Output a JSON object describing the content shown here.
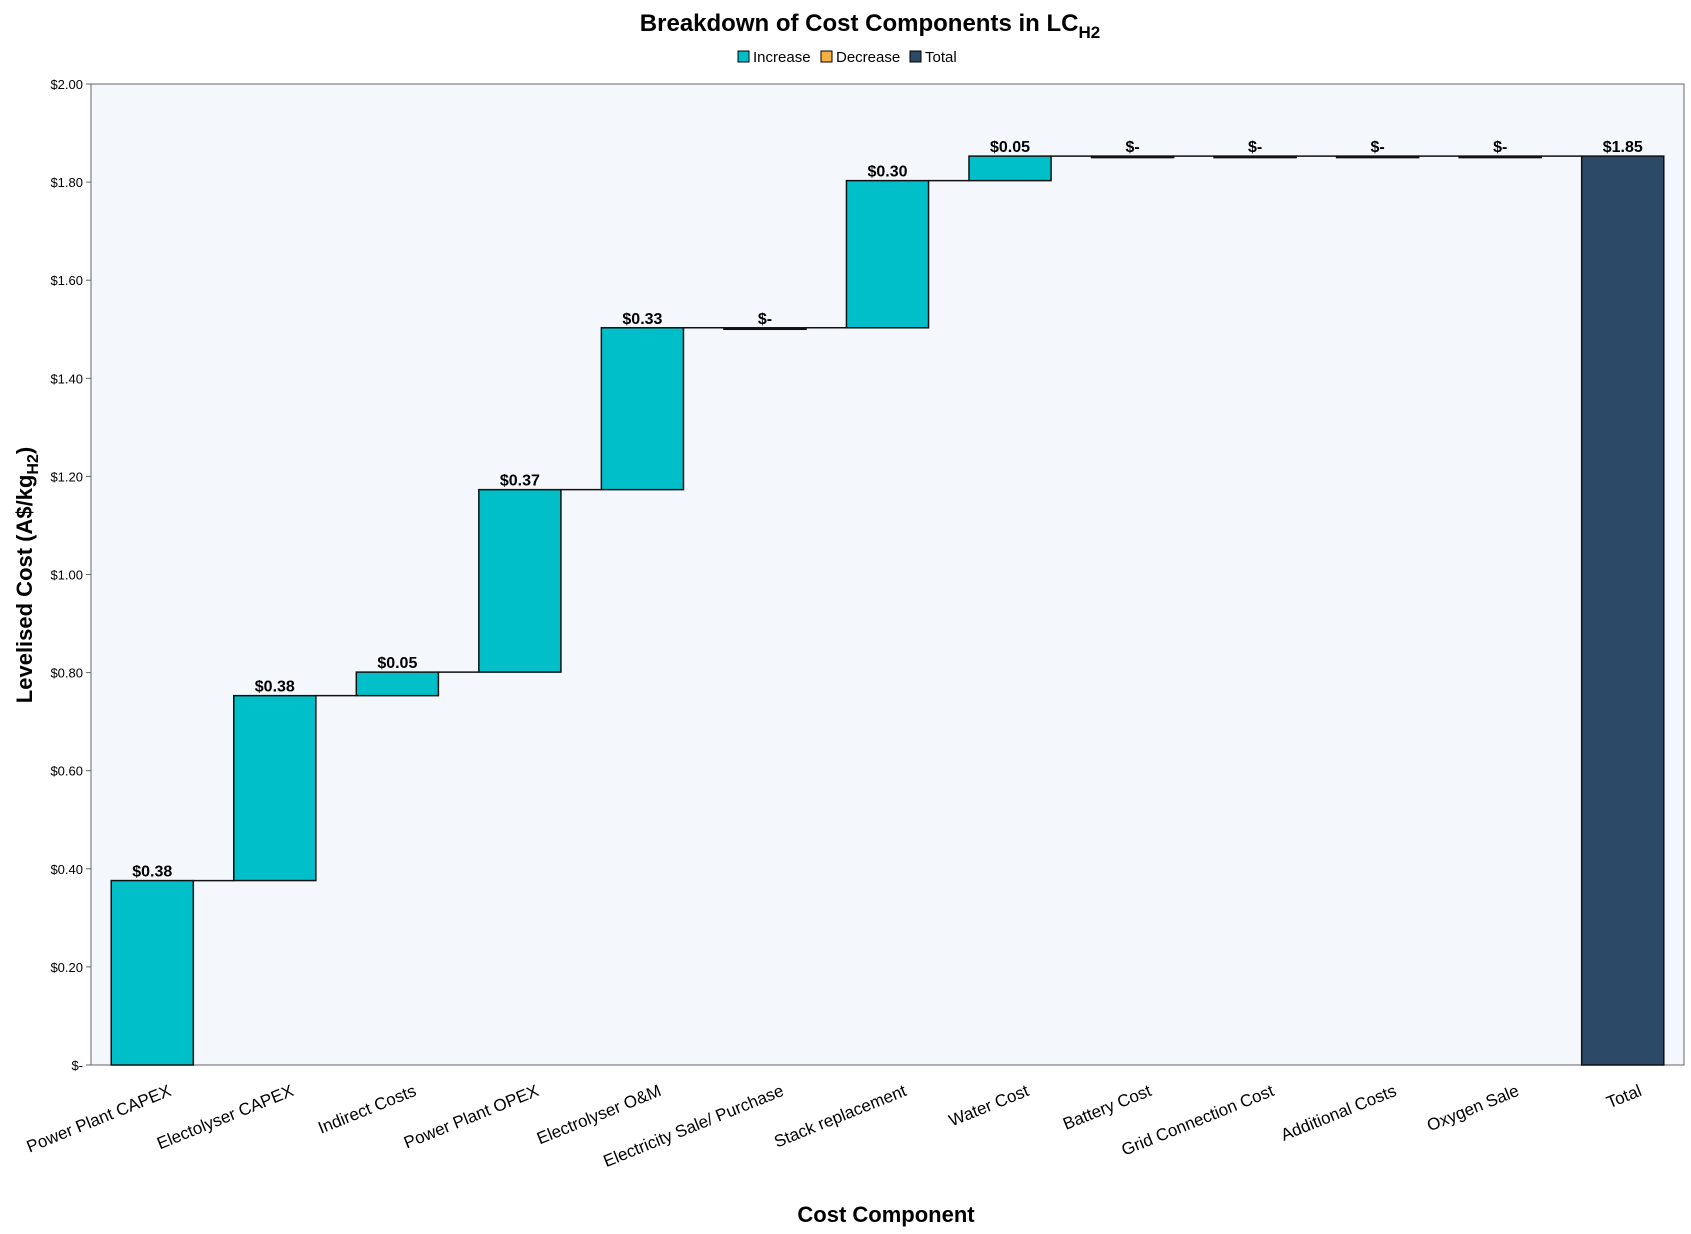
{
  "chart_data": {
    "type": "bar",
    "subtype": "waterfall",
    "title": "Breakdown of Cost Components in LC",
    "title_subscript": "H2",
    "xlabel": "Cost Component",
    "ylabel": "Levelised Cost (A$/kg",
    "ylabel_subscript": "H2",
    "ylabel_suffix": ")",
    "ylim": [
      0,
      2.0
    ],
    "yticks": [
      0,
      0.2,
      0.4,
      0.6,
      0.8,
      1.0,
      1.2,
      1.4,
      1.6,
      1.8,
      2.0
    ],
    "ytick_labels": [
      "$-",
      "$0.20",
      "$0.40",
      "$0.60",
      "$0.80",
      "$1.00",
      "$1.20",
      "$1.40",
      "$1.60",
      "$1.80",
      "$2.00"
    ],
    "legend": {
      "placement": "top-center",
      "entries": [
        {
          "name": "Increase",
          "color": "#00BFC8"
        },
        {
          "name": "Decrease",
          "color": "#F5B041"
        },
        {
          "name": "Total",
          "color": "#2C4A68"
        }
      ]
    },
    "colors": {
      "increase": "#00BFC8",
      "decrease": "#F5B041",
      "total": "#2C4A68",
      "plot_bg": "#F4F7FC"
    },
    "categories": [
      "Power Plant CAPEX",
      "Electolyser CAPEX",
      "Indirect Costs",
      "Power Plant OPEX",
      "Electrolyser O&M",
      "Electricity Sale/ Purchase",
      "Stack replacement",
      "Water Cost",
      "Battery Cost",
      "Grid Connection Cost",
      "Additional Costs",
      "Oxygen Sale",
      "Total"
    ],
    "values": [
      0.376,
      0.377,
      0.048,
      0.372,
      0.33,
      0.0,
      0.3,
      0.05,
      0.0,
      0.0,
      0.0,
      0.0,
      1.853
    ],
    "kinds": [
      "increase",
      "increase",
      "increase",
      "increase",
      "increase",
      "increase",
      "increase",
      "increase",
      "increase",
      "increase",
      "increase",
      "increase",
      "total"
    ],
    "data_labels": [
      "$0.38",
      "$0.38",
      "$0.05",
      "$0.37",
      "$0.33",
      "$-",
      "$0.30",
      "$0.05",
      "$-",
      "$-",
      "$-",
      "$-",
      "$1.85"
    ],
    "grid": false
  }
}
